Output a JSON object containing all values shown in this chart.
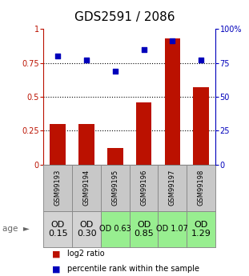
{
  "title": "GDS2591 / 2086",
  "samples": [
    "GSM99193",
    "GSM99194",
    "GSM99195",
    "GSM99196",
    "GSM99197",
    "GSM99198"
  ],
  "log2_ratio": [
    0.3,
    0.3,
    0.12,
    0.46,
    0.93,
    0.57
  ],
  "percentile_rank": [
    0.8,
    0.77,
    0.69,
    0.85,
    0.91,
    0.77
  ],
  "od_values": [
    "OD\n0.15",
    "OD\n0.30",
    "OD 0.63",
    "OD\n0.85",
    "OD 1.07",
    "OD\n1.29"
  ],
  "od_bg_colors": [
    "#d3d3d3",
    "#d3d3d3",
    "#98ee90",
    "#98ee90",
    "#98ee90",
    "#98ee90"
  ],
  "od_font_sizes": [
    8,
    8,
    7,
    8,
    7,
    8
  ],
  "bar_color": "#bb1100",
  "scatter_color": "#0000bb",
  "ylim_left": [
    0,
    1.0
  ],
  "ylim_right": [
    0,
    100
  ],
  "yticks_left": [
    0,
    0.25,
    0.5,
    0.75,
    1.0
  ],
  "ytick_labels_left": [
    "0",
    "0.25",
    "0.5",
    "0.75",
    "1"
  ],
  "yticks_right": [
    0,
    25,
    50,
    75,
    100
  ],
  "ytick_labels_right": [
    "0",
    "25",
    "50",
    "75",
    "100%"
  ],
  "hlines": [
    0.25,
    0.5,
    0.75
  ],
  "legend_labels": [
    "log2 ratio",
    "percentile rank within the sample"
  ],
  "bar_width": 0.55,
  "sample_col_bg": "#c8c8c8",
  "title_fontsize": 11,
  "scatter_size": 18
}
